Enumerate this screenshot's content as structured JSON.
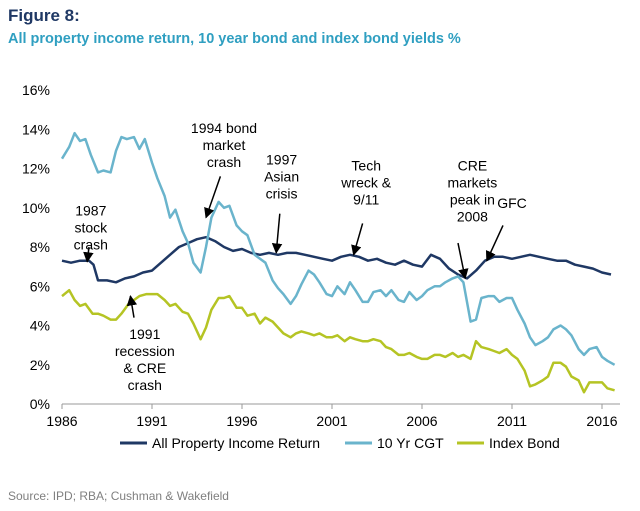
{
  "figure_label": "Figure 8:",
  "title": "All property income return, 10 year bond and index bond yields %",
  "source": "Source: IPD; RBA; Cushman & Wakefield",
  "colors": {
    "all_property": "#1f3864",
    "ten_yr": "#6ab4cc",
    "index_bond": "#b5c424",
    "title": "#2f9fc1"
  },
  "chart_data": {
    "type": "line",
    "title": "All property income return, 10 year bond and index bond yields %",
    "xlabel": "",
    "ylabel": "",
    "xlim": [
      1986,
      2017
    ],
    "ylim": [
      0,
      16
    ],
    "x_ticks": [
      1986,
      1991,
      1996,
      2001,
      2006,
      2011,
      2016
    ],
    "y_ticks": [
      "0%",
      "2%",
      "4%",
      "6%",
      "8%",
      "10%",
      "12%",
      "14%",
      "16%"
    ],
    "legend_position": "bottom",
    "grid": false,
    "series": [
      {
        "name": "All Property Income Return",
        "color": "#1f3864",
        "points": [
          [
            1986,
            7.3
          ],
          [
            1986.5,
            7.2
          ],
          [
            1987,
            7.3
          ],
          [
            1987.5,
            7.3
          ],
          [
            1987.75,
            7.1
          ],
          [
            1988,
            6.3
          ],
          [
            1988.5,
            6.3
          ],
          [
            1989,
            6.2
          ],
          [
            1989.5,
            6.4
          ],
          [
            1990,
            6.5
          ],
          [
            1990.5,
            6.7
          ],
          [
            1991,
            6.8
          ],
          [
            1991.5,
            7.2
          ],
          [
            1992,
            7.6
          ],
          [
            1992.5,
            8.0
          ],
          [
            1993,
            8.2
          ],
          [
            1993.5,
            8.4
          ],
          [
            1994,
            8.5
          ],
          [
            1994.5,
            8.3
          ],
          [
            1995,
            8.0
          ],
          [
            1995.5,
            7.8
          ],
          [
            1996,
            7.9
          ],
          [
            1996.5,
            7.7
          ],
          [
            1997,
            7.6
          ],
          [
            1997.5,
            7.7
          ],
          [
            1998,
            7.6
          ],
          [
            1998.5,
            7.7
          ],
          [
            1999,
            7.7
          ],
          [
            1999.5,
            7.6
          ],
          [
            2000,
            7.5
          ],
          [
            2000.5,
            7.4
          ],
          [
            2001,
            7.3
          ],
          [
            2001.5,
            7.5
          ],
          [
            2002,
            7.6
          ],
          [
            2002.5,
            7.5
          ],
          [
            2003,
            7.3
          ],
          [
            2003.5,
            7.4
          ],
          [
            2004,
            7.2
          ],
          [
            2004.5,
            7.1
          ],
          [
            2005,
            7.3
          ],
          [
            2005.5,
            7.1
          ],
          [
            2006,
            7.0
          ],
          [
            2006.5,
            7.6
          ],
          [
            2007,
            7.4
          ],
          [
            2007.5,
            6.9
          ],
          [
            2008,
            6.6
          ],
          [
            2008.5,
            6.4
          ],
          [
            2009,
            6.8
          ],
          [
            2009.5,
            7.3
          ],
          [
            2010,
            7.5
          ],
          [
            2010.5,
            7.5
          ],
          [
            2011,
            7.4
          ],
          [
            2011.5,
            7.5
          ],
          [
            2012,
            7.6
          ],
          [
            2012.5,
            7.5
          ],
          [
            2013,
            7.4
          ],
          [
            2013.5,
            7.3
          ],
          [
            2014,
            7.3
          ],
          [
            2014.5,
            7.1
          ],
          [
            2015,
            7.0
          ],
          [
            2015.5,
            6.9
          ],
          [
            2016,
            6.7
          ],
          [
            2016.5,
            6.6
          ]
        ]
      },
      {
        "name": "10 Yr CGT",
        "color": "#6ab4cc",
        "points": [
          [
            1986,
            12.5
          ],
          [
            1986.4,
            13.1
          ],
          [
            1986.7,
            13.8
          ],
          [
            1987,
            13.4
          ],
          [
            1987.3,
            13.5
          ],
          [
            1987.6,
            12.7
          ],
          [
            1988,
            11.8
          ],
          [
            1988.3,
            11.9
          ],
          [
            1988.7,
            11.8
          ],
          [
            1989,
            12.9
          ],
          [
            1989.3,
            13.6
          ],
          [
            1989.6,
            13.5
          ],
          [
            1990,
            13.6
          ],
          [
            1990.3,
            13.0
          ],
          [
            1990.6,
            13.5
          ],
          [
            1991,
            12.3
          ],
          [
            1991.3,
            11.5
          ],
          [
            1991.7,
            10.6
          ],
          [
            1992,
            9.5
          ],
          [
            1992.3,
            9.9
          ],
          [
            1992.7,
            8.8
          ],
          [
            1993,
            8.2
          ],
          [
            1993.3,
            7.2
          ],
          [
            1993.7,
            6.7
          ],
          [
            1994,
            8.0
          ],
          [
            1994.3,
            9.5
          ],
          [
            1994.7,
            10.3
          ],
          [
            1995,
            10.0
          ],
          [
            1995.3,
            10.1
          ],
          [
            1995.7,
            9.1
          ],
          [
            1996,
            8.8
          ],
          [
            1996.3,
            8.6
          ],
          [
            1996.7,
            7.6
          ],
          [
            1997,
            7.4
          ],
          [
            1997.3,
            7.2
          ],
          [
            1997.7,
            6.3
          ],
          [
            1998,
            5.9
          ],
          [
            1998.3,
            5.6
          ],
          [
            1998.7,
            5.1
          ],
          [
            1999,
            5.5
          ],
          [
            1999.3,
            6.1
          ],
          [
            1999.7,
            6.8
          ],
          [
            2000,
            6.6
          ],
          [
            2000.3,
            6.2
          ],
          [
            2000.7,
            5.6
          ],
          [
            2001,
            5.5
          ],
          [
            2001.3,
            6.0
          ],
          [
            2001.7,
            5.6
          ],
          [
            2002,
            6.2
          ],
          [
            2002.3,
            5.8
          ],
          [
            2002.7,
            5.2
          ],
          [
            2003,
            5.2
          ],
          [
            2003.3,
            5.7
          ],
          [
            2003.7,
            5.8
          ],
          [
            2004,
            5.5
          ],
          [
            2004.3,
            5.8
          ],
          [
            2004.7,
            5.3
          ],
          [
            2005,
            5.2
          ],
          [
            2005.3,
            5.7
          ],
          [
            2005.7,
            5.3
          ],
          [
            2006,
            5.5
          ],
          [
            2006.3,
            5.8
          ],
          [
            2006.7,
            6.0
          ],
          [
            2007,
            6.0
          ],
          [
            2007.3,
            6.2
          ],
          [
            2007.7,
            6.4
          ],
          [
            2008,
            6.5
          ],
          [
            2008.3,
            6.2
          ],
          [
            2008.7,
            4.2
          ],
          [
            2009,
            4.3
          ],
          [
            2009.3,
            5.4
          ],
          [
            2009.7,
            5.5
          ],
          [
            2010,
            5.5
          ],
          [
            2010.3,
            5.2
          ],
          [
            2010.7,
            5.4
          ],
          [
            2011,
            5.4
          ],
          [
            2011.3,
            4.8
          ],
          [
            2011.7,
            4.1
          ],
          [
            2012,
            3.4
          ],
          [
            2012.3,
            3.0
          ],
          [
            2012.7,
            3.2
          ],
          [
            2013,
            3.4
          ],
          [
            2013.3,
            3.8
          ],
          [
            2013.7,
            4.0
          ],
          [
            2014,
            3.8
          ],
          [
            2014.3,
            3.5
          ],
          [
            2014.7,
            2.8
          ],
          [
            2015,
            2.5
          ],
          [
            2015.3,
            2.8
          ],
          [
            2015.7,
            2.9
          ],
          [
            2016,
            2.4
          ],
          [
            2016.3,
            2.2
          ],
          [
            2016.7,
            2.0
          ]
        ]
      },
      {
        "name": "Index Bond",
        "color": "#b5c424",
        "points": [
          [
            1986,
            5.5
          ],
          [
            1986.4,
            5.8
          ],
          [
            1986.7,
            5.3
          ],
          [
            1987,
            5.0
          ],
          [
            1987.3,
            5.1
          ],
          [
            1987.7,
            4.6
          ],
          [
            1988,
            4.6
          ],
          [
            1988.3,
            4.5
          ],
          [
            1988.7,
            4.3
          ],
          [
            1989,
            4.3
          ],
          [
            1989.3,
            4.6
          ],
          [
            1989.7,
            5.1
          ],
          [
            1990,
            5.3
          ],
          [
            1990.3,
            5.5
          ],
          [
            1990.7,
            5.6
          ],
          [
            1991,
            5.6
          ],
          [
            1991.3,
            5.6
          ],
          [
            1991.7,
            5.3
          ],
          [
            1992,
            5.0
          ],
          [
            1992.3,
            5.1
          ],
          [
            1992.7,
            4.7
          ],
          [
            1993,
            4.6
          ],
          [
            1993.3,
            4.1
          ],
          [
            1993.7,
            3.3
          ],
          [
            1994,
            3.9
          ],
          [
            1994.3,
            4.8
          ],
          [
            1994.7,
            5.4
          ],
          [
            1995,
            5.4
          ],
          [
            1995.3,
            5.5
          ],
          [
            1995.7,
            4.9
          ],
          [
            1996,
            4.9
          ],
          [
            1996.3,
            4.5
          ],
          [
            1996.7,
            4.6
          ],
          [
            1997,
            4.1
          ],
          [
            1997.3,
            4.4
          ],
          [
            1997.7,
            4.2
          ],
          [
            1998,
            3.9
          ],
          [
            1998.3,
            3.6
          ],
          [
            1998.7,
            3.4
          ],
          [
            1999,
            3.6
          ],
          [
            1999.3,
            3.7
          ],
          [
            1999.7,
            3.6
          ],
          [
            2000,
            3.5
          ],
          [
            2000.3,
            3.6
          ],
          [
            2000.7,
            3.4
          ],
          [
            2001,
            3.4
          ],
          [
            2001.3,
            3.5
          ],
          [
            2001.7,
            3.2
          ],
          [
            2002,
            3.4
          ],
          [
            2002.3,
            3.3
          ],
          [
            2002.7,
            3.2
          ],
          [
            2003,
            3.2
          ],
          [
            2003.3,
            3.3
          ],
          [
            2003.7,
            3.2
          ],
          [
            2004,
            2.9
          ],
          [
            2004.3,
            2.8
          ],
          [
            2004.7,
            2.5
          ],
          [
            2005,
            2.5
          ],
          [
            2005.3,
            2.6
          ],
          [
            2005.7,
            2.4
          ],
          [
            2006,
            2.3
          ],
          [
            2006.3,
            2.3
          ],
          [
            2006.7,
            2.5
          ],
          [
            2007,
            2.5
          ],
          [
            2007.3,
            2.4
          ],
          [
            2007.7,
            2.6
          ],
          [
            2008,
            2.4
          ],
          [
            2008.3,
            2.5
          ],
          [
            2008.7,
            2.3
          ],
          [
            2009,
            3.2
          ],
          [
            2009.3,
            2.9
          ],
          [
            2009.7,
            2.8
          ],
          [
            2010,
            2.7
          ],
          [
            2010.3,
            2.6
          ],
          [
            2010.7,
            2.8
          ],
          [
            2011,
            2.5
          ],
          [
            2011.3,
            2.3
          ],
          [
            2011.7,
            1.7
          ],
          [
            2012,
            0.9
          ],
          [
            2012.3,
            1.0
          ],
          [
            2012.7,
            1.2
          ],
          [
            2013,
            1.4
          ],
          [
            2013.3,
            2.1
          ],
          [
            2013.7,
            2.1
          ],
          [
            2014,
            1.9
          ],
          [
            2014.3,
            1.4
          ],
          [
            2014.7,
            1.2
          ],
          [
            2015,
            0.6
          ],
          [
            2015.3,
            1.1
          ],
          [
            2015.7,
            1.1
          ],
          [
            2016,
            1.1
          ],
          [
            2016.3,
            0.8
          ],
          [
            2016.7,
            0.7
          ]
        ]
      }
    ],
    "annotations": [
      {
        "lines": [
          "1987",
          "stock",
          "crash"
        ],
        "text_at": [
          1987.6,
          9.6
        ],
        "arrow_to": [
          1987.4,
          7.25
        ],
        "arrow_from": [
          1987.5,
          8.0
        ]
      },
      {
        "lines": [
          "1991",
          "recession",
          "& CRE",
          "crash"
        ],
        "text_at": [
          1990.6,
          3.3
        ],
        "arrow_to": [
          1989.8,
          5.5
        ],
        "arrow_from": [
          1990.0,
          4.4
        ]
      },
      {
        "lines": [
          "1994 bond",
          "market",
          "crash"
        ],
        "text_at": [
          1995.0,
          13.8
        ],
        "arrow_to": [
          1994.0,
          9.5
        ],
        "arrow_from": [
          1994.8,
          11.6
        ]
      },
      {
        "lines": [
          "1997",
          "Asian",
          "crisis"
        ],
        "text_at": [
          1998.2,
          12.2
        ],
        "arrow_to": [
          1997.9,
          7.7
        ],
        "arrow_from": [
          1998.1,
          9.7
        ]
      },
      {
        "lines": [
          "Tech",
          "wreck &",
          "9/11"
        ],
        "text_at": [
          2002.9,
          11.9
        ],
        "arrow_to": [
          2002.2,
          7.6
        ],
        "arrow_from": [
          2002.7,
          9.2
        ]
      },
      {
        "lines": [
          "CRE",
          "markets",
          "peak in",
          "2008"
        ],
        "text_at": [
          2008.8,
          11.9
        ],
        "arrow_to": [
          2008.4,
          6.4
        ],
        "arrow_from": [
          2008.0,
          8.2
        ]
      },
      {
        "lines": [
          "GFC"
        ],
        "text_at": [
          2011.0,
          10.0
        ],
        "arrow_to": [
          2009.6,
          7.3
        ],
        "arrow_from": [
          2010.5,
          9.1
        ]
      }
    ]
  }
}
